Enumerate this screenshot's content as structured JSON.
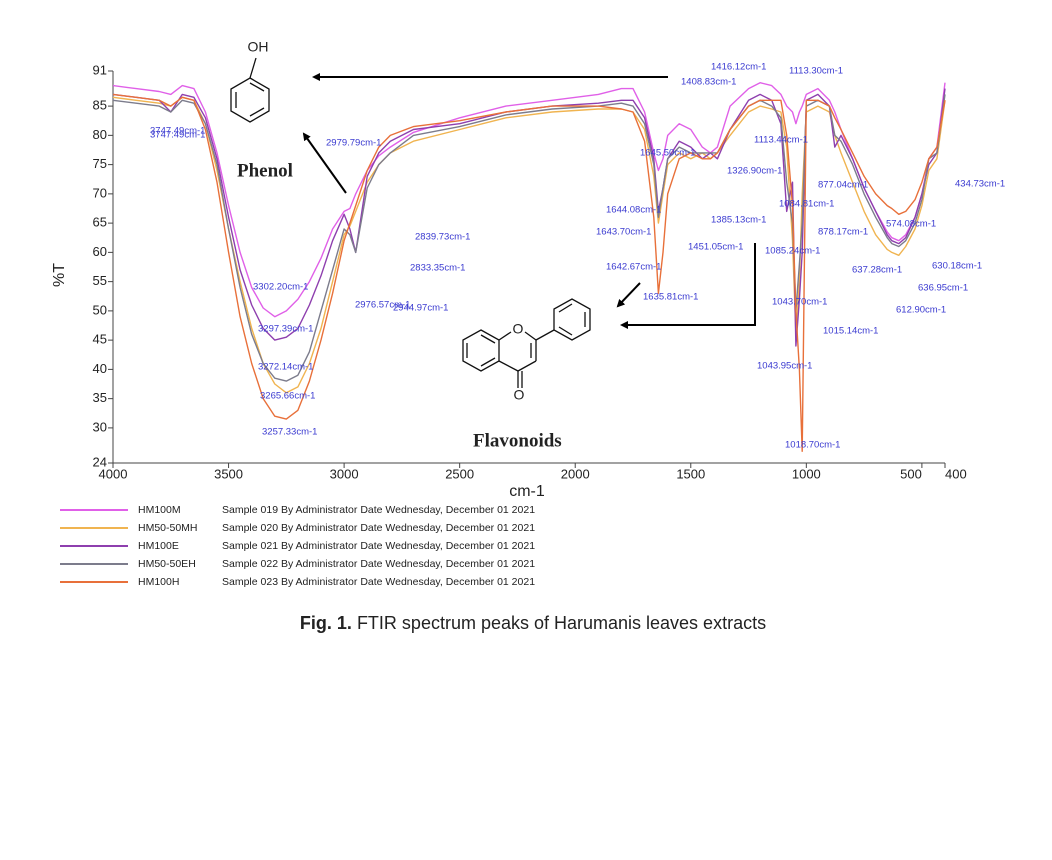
{
  "chart_data": {
    "type": "line",
    "xlabel": "cm-1",
    "ylabel": "%T",
    "x": [
      4000,
      3900,
      3800,
      3750,
      3700,
      3650,
      3600,
      3550,
      3500,
      3450,
      3400,
      3350,
      3300,
      3250,
      3200,
      3150,
      3100,
      3050,
      3000,
      2975,
      2950,
      2900,
      2850,
      2800,
      2700,
      2500,
      2300,
      2100,
      1900,
      1800,
      1750,
      1700,
      1660,
      1640,
      1620,
      1600,
      1550,
      1500,
      1450,
      1415,
      1385,
      1330,
      1250,
      1200,
      1150,
      1110,
      1085,
      1060,
      1045,
      1030,
      1018,
      1000,
      950,
      900,
      877,
      850,
      800,
      750,
      700,
      650,
      630,
      600,
      570,
      530,
      500,
      470,
      435,
      400
    ],
    "xlim": [
      4000,
      400
    ],
    "xticks": [
      4000,
      3500,
      3000,
      2500,
      2000,
      1500,
      1000,
      500,
      400
    ],
    "ylim": [
      24,
      91
    ],
    "yticks": [
      24,
      30,
      35,
      40,
      45,
      50,
      55,
      60,
      65,
      70,
      75,
      80,
      85,
      91
    ],
    "series": [
      {
        "name": "HM100M",
        "description": "Sample 019 By Administrator Date Wednesday, December 01 2021",
        "color": "#e060e8",
        "values": [
          88.5,
          88,
          87.5,
          87,
          88.5,
          88,
          84,
          77,
          68,
          60,
          54,
          50.5,
          49,
          50,
          52,
          55,
          59,
          64,
          67,
          67.5,
          70,
          74,
          76.5,
          78,
          80.5,
          83,
          85,
          86,
          87,
          88,
          88,
          84,
          77,
          74,
          76,
          80,
          82,
          81,
          78,
          77,
          78,
          85,
          88,
          89,
          88.5,
          87,
          85,
          84,
          82,
          84,
          85,
          87,
          88,
          86,
          84,
          81,
          76,
          71,
          67,
          63.5,
          62.5,
          62,
          63,
          66,
          70,
          76,
          78,
          89
        ]
      },
      {
        "name": "HM50-50MH",
        "description": "Sample 020 By Administrator Date Wednesday, December 01 2021",
        "color": "#f0b450",
        "values": [
          86.5,
          86,
          85.5,
          85,
          86.5,
          86,
          82,
          74,
          64,
          55,
          47,
          41,
          37.5,
          36,
          37,
          41,
          47,
          55,
          63,
          64.5,
          67,
          72,
          75,
          77,
          79,
          81,
          83,
          84,
          84.5,
          84.5,
          84,
          81,
          73,
          65,
          70,
          75,
          77,
          76,
          77,
          76,
          77,
          80,
          84,
          85,
          84.5,
          84,
          78,
          62,
          46,
          55,
          70,
          84,
          85,
          84,
          80,
          77,
          72,
          67,
          63,
          60.5,
          60,
          59.5,
          61,
          64,
          68,
          74,
          76,
          86
        ]
      },
      {
        "name": "HM100E",
        "description": "Sample 021 By Administrator Date Wednesday, December 01 2021",
        "color": "#8e3fae",
        "values": [
          87,
          86.5,
          86,
          84,
          87,
          86.5,
          83,
          76,
          66,
          57,
          51,
          47,
          45,
          45.5,
          47,
          51,
          56,
          62,
          66.5,
          64,
          60,
          73,
          77,
          79,
          81,
          82,
          84,
          85,
          85.5,
          86,
          86,
          83,
          76,
          67,
          71,
          76,
          79,
          78,
          76,
          77,
          76,
          81,
          86,
          87,
          86,
          82,
          67,
          72,
          44,
          52,
          60,
          86,
          87,
          85,
          78,
          80,
          76,
          71,
          67,
          63,
          62,
          61.5,
          62.5,
          66,
          70,
          75,
          77,
          88
        ]
      },
      {
        "name": "HM50-50EH",
        "description": "Sample 022 By Administrator Date Wednesday, December 01 2021",
        "color": "#7c7c8c",
        "values": [
          86,
          85.5,
          85,
          84,
          86,
          85.5,
          82,
          75,
          64,
          54,
          46,
          41,
          38.5,
          38,
          39,
          43,
          50,
          57,
          64,
          63,
          60,
          71,
          75,
          77,
          80,
          81.5,
          83.5,
          84.5,
          85,
          85.5,
          85,
          82,
          75,
          66,
          71,
          76,
          78,
          77,
          77,
          77,
          77,
          81,
          85,
          86,
          85,
          83,
          72,
          65,
          50,
          58,
          65,
          85,
          86,
          85,
          80,
          79,
          75,
          70,
          66,
          62.5,
          61.5,
          61,
          62,
          65,
          69,
          76,
          77,
          87
        ]
      },
      {
        "name": "HM100H",
        "description": "Sample 023 By Administrator Date Wednesday, December 01 2021",
        "color": "#e8703a",
        "values": [
          87,
          86.5,
          86,
          85,
          86.5,
          86,
          81,
          72,
          60,
          49,
          41,
          35,
          32,
          31.5,
          33,
          38,
          45,
          53,
          62,
          65,
          68,
          74,
          78,
          80,
          81.5,
          82.5,
          84,
          85,
          85,
          84.5,
          84,
          79,
          66,
          53,
          60,
          70,
          76,
          77,
          76,
          76,
          77,
          81,
          85,
          86,
          86,
          86,
          80,
          68,
          50,
          40,
          26,
          86,
          86,
          85,
          83,
          81,
          77,
          73,
          70,
          68,
          67.5,
          66.5,
          67,
          69,
          72,
          76,
          78,
          86
        ]
      }
    ],
    "annotations": [
      "3747.49cm-1",
      "3747.49cm-1",
      "2979.79cm-1",
      "2839.73cm-1",
      "2833.35cm-1",
      "2976.57cm-1",
      "2944.97cm-1",
      "3302.20cm-1",
      "3297.39cm-1",
      "3272.14cm-1",
      "3265.66cm-1",
      "3257.33cm-1",
      "1416.12cm-1",
      "1408.83cm-1",
      "1113.30cm-1",
      "1645.50cm-1",
      "1326.90cm-1",
      "1113.44cm-1",
      "877.04cm-1",
      "434.73cm-1",
      "1084.81cm-1",
      "1644.08cm-1",
      "1385.13cm-1",
      "1643.70cm-1",
      "878.17cm-1",
      "574.08cm-1",
      "1451.05cm-1",
      "1085.24cm-1",
      "1642.67cm-1",
      "637.28cm-1",
      "630.18cm-1",
      "636.95cm-1",
      "1635.81cm-1",
      "1043.70cm-1",
      "612.90cm-1",
      "1015.14cm-1",
      "1043.95cm-1",
      "1018.70cm-1"
    ],
    "phenol_label": "Phenol",
    "flavonoids_label": "Flavonoids",
    "chem_labels": [
      "OH",
      "O",
      "O"
    ],
    "caption_label": "Fig. 1.",
    "caption": "FTIR spectrum peaks of Harumanis leaves extracts"
  }
}
